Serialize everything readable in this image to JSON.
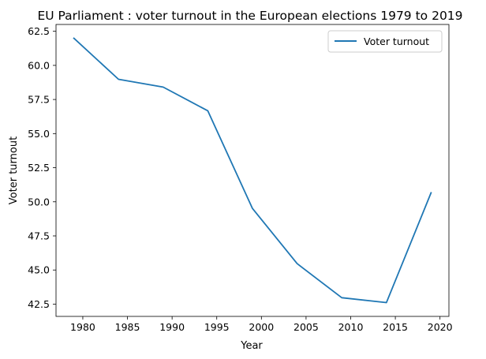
{
  "chart_data": {
    "type": "line",
    "title": "EU Parliament : voter turnout in the European elections 1979 to 2019",
    "xlabel": "Year",
    "ylabel": "Voter turnout",
    "x": [
      1979,
      1984,
      1989,
      1994,
      1999,
      2004,
      2009,
      2014,
      2019
    ],
    "series": [
      {
        "name": "Voter turnout",
        "color": "#1f77b4",
        "values": [
          61.99,
          58.98,
          58.41,
          56.67,
          49.51,
          45.47,
          42.97,
          42.61,
          50.66
        ]
      }
    ],
    "xlim": [
      1977,
      2021
    ],
    "ylim": [
      41.6,
      63.0
    ],
    "xticks": [
      1980,
      1985,
      1990,
      1995,
      2000,
      2005,
      2010,
      2015,
      2020
    ],
    "yticks": [
      42.5,
      45.0,
      47.5,
      50.0,
      52.5,
      55.0,
      57.5,
      60.0,
      62.5
    ],
    "grid": false,
    "legend_position": "top-right"
  }
}
